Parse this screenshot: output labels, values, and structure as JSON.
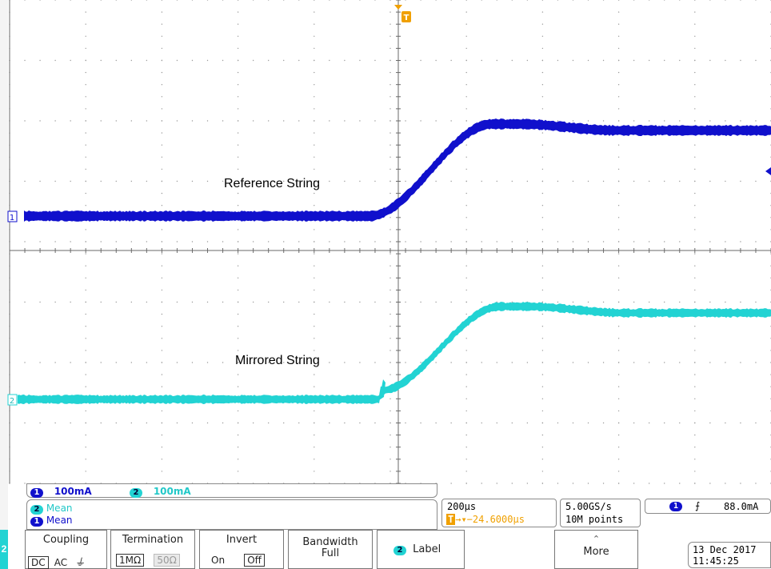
{
  "annotations": {
    "reference": "Reference String",
    "mirrored": "Mirrored String"
  },
  "markers": {
    "trigger": "T",
    "ch1": "1",
    "ch2": "2"
  },
  "channel_bar": {
    "ch1_num": "1",
    "ch1_scale": "100mA",
    "ch2_num": "2",
    "ch2_scale": "100mA"
  },
  "measurements": [
    {
      "num": "2",
      "label": "Mean"
    },
    {
      "num": "1",
      "label": "Mean"
    }
  ],
  "timebase": {
    "scale": "200µs",
    "position": "→▾−24.6000µs",
    "position_badge": "T"
  },
  "acquisition": {
    "rate": "5.00GS/s",
    "points": "10M points"
  },
  "trigger": {
    "channel": "1",
    "slope": "⨍",
    "level": "88.0mA"
  },
  "menu": {
    "channel_tab": "2",
    "coupling": {
      "title": "Coupling",
      "options": [
        "DC",
        "AC",
        "⏚"
      ]
    },
    "termination": {
      "title": "Termination",
      "options": [
        "1MΩ",
        "50Ω"
      ]
    },
    "invert": {
      "title": "Invert",
      "options": [
        "On",
        "Off"
      ]
    },
    "bandwidth": {
      "title": "Bandwidth",
      "value": "Full"
    },
    "label": {
      "num": "2",
      "title": "Label"
    },
    "more": {
      "arrow": "⌃",
      "title": "More"
    }
  },
  "clock": {
    "date": "13 Dec 2017",
    "time": "11:45:25"
  },
  "colors": {
    "ch1": "#1010cc",
    "ch2": "#22d3d3",
    "trigger": "#f0a000",
    "grid": "#9a9a9a"
  }
}
